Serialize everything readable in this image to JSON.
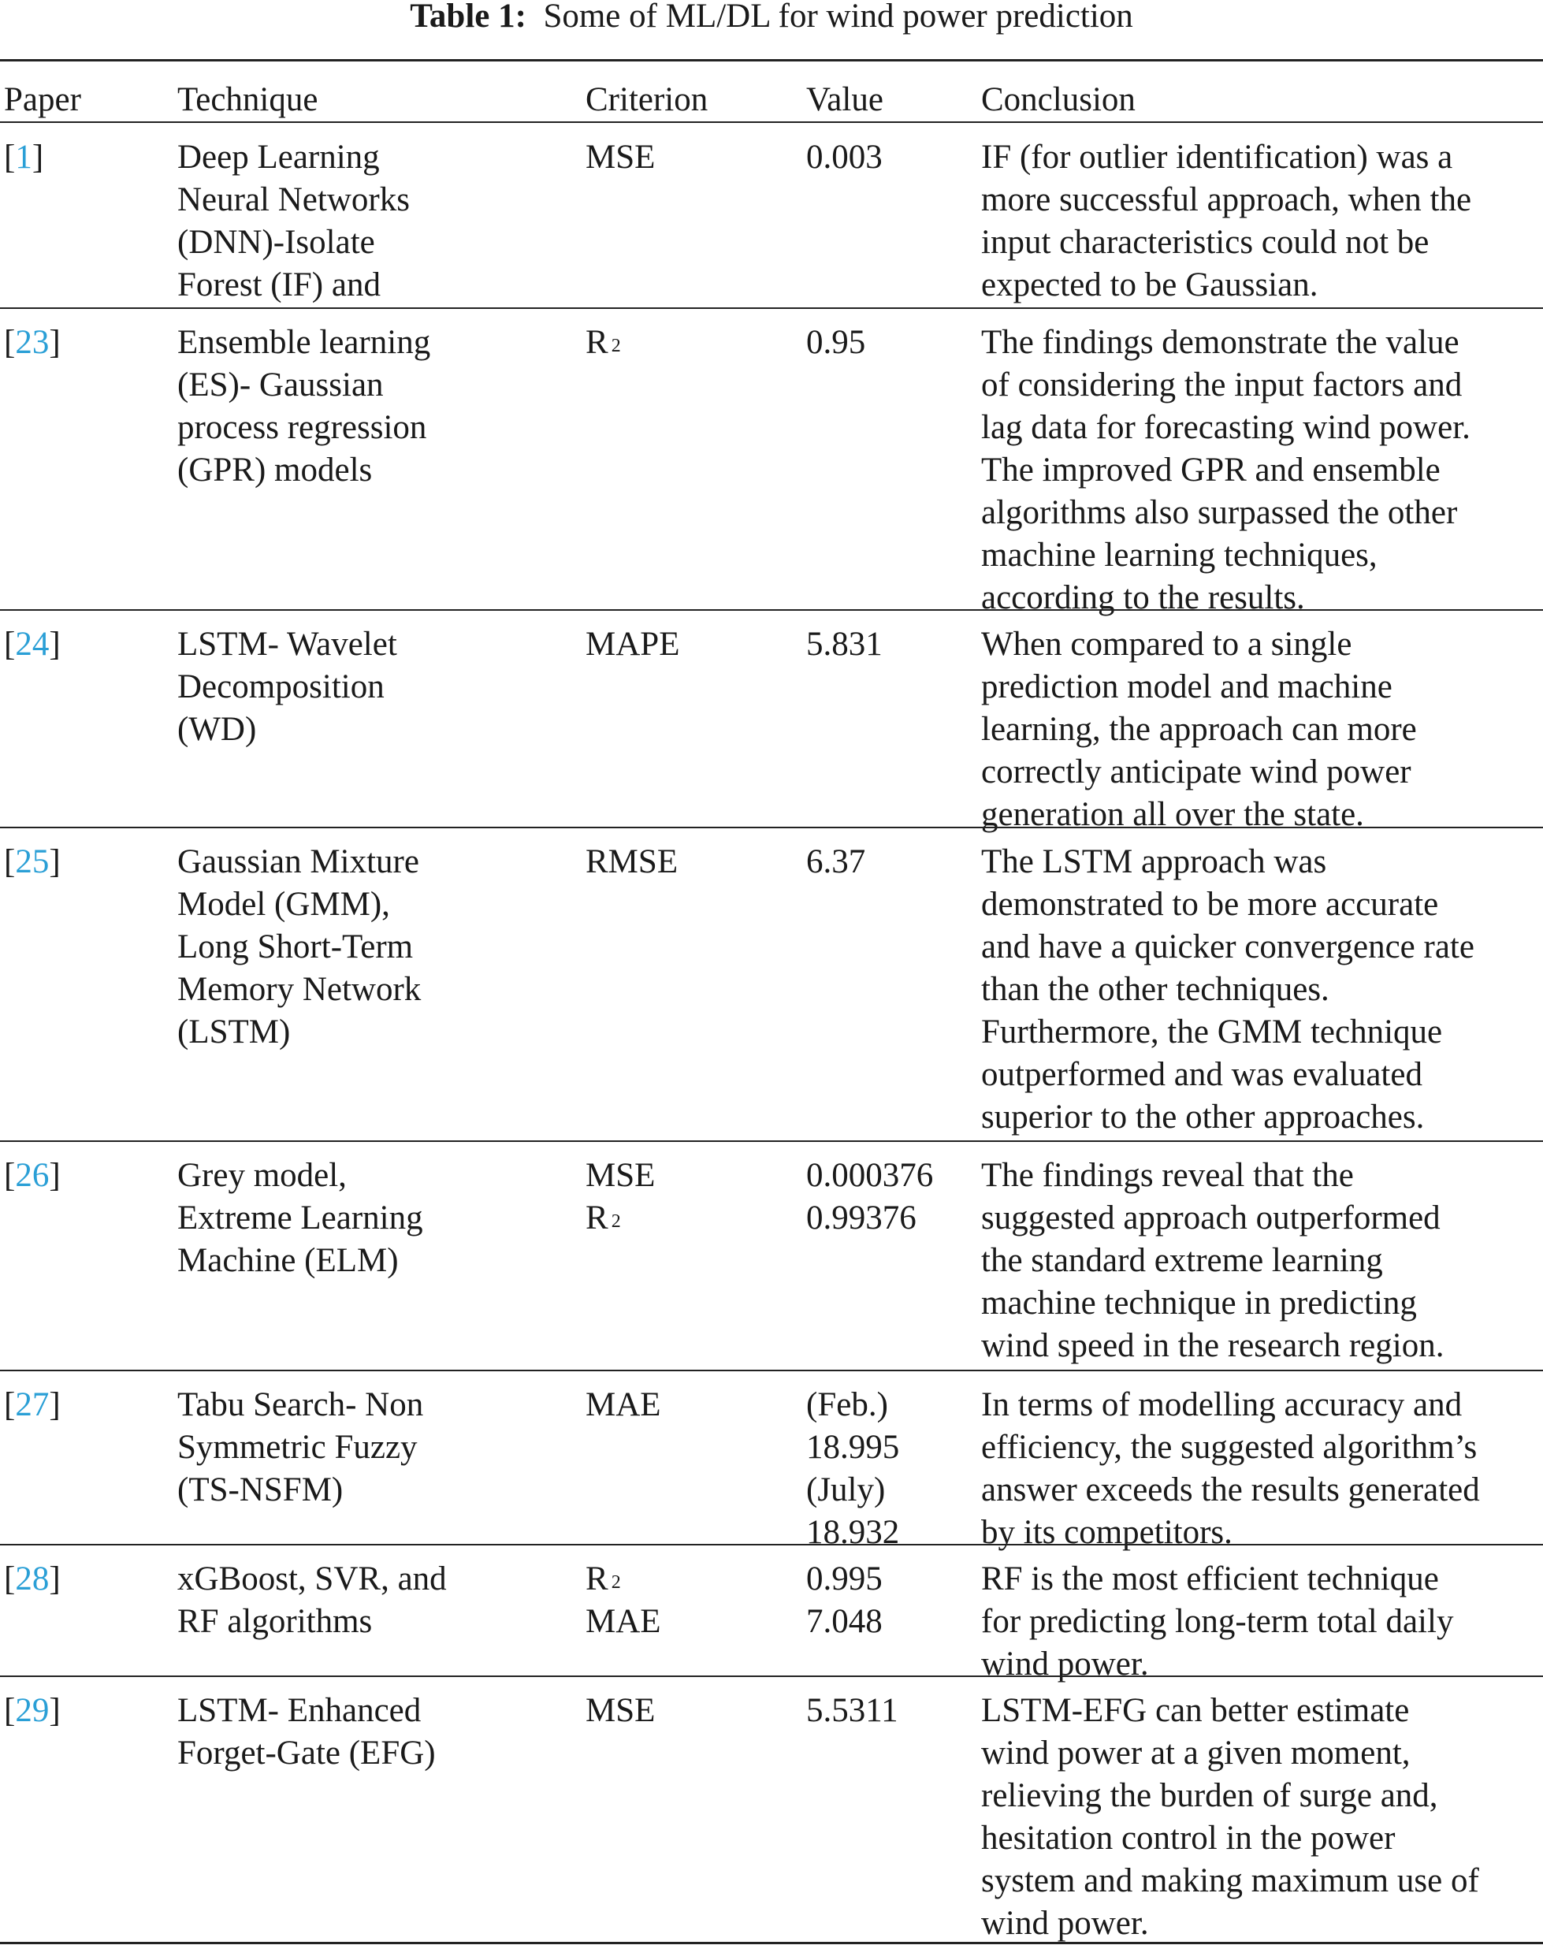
{
  "title": {
    "label": "Table 1:",
    "text": "Some of ML/DL for wind power prediction"
  },
  "colors": {
    "reference_link": "#2a9fd6",
    "text": "#1a1a1a"
  },
  "columns": [
    "Paper",
    "Technique",
    "Criterion",
    "Value",
    "Conclusion"
  ],
  "rows": [
    {
      "paper": "1",
      "technique": [
        "Deep Learning",
        "Neural Networks",
        "(DNN)-Isolate",
        "Forest (IF) and"
      ],
      "criterion": [
        "MSE"
      ],
      "value": [
        "0.003"
      ],
      "conclusion": [
        "IF (for outlier identification) was a",
        "more successful approach, when the",
        "input characteristics could not be",
        "expected to be Gaussian."
      ]
    },
    {
      "paper": "23",
      "technique": [
        "Ensemble learning",
        "(ES)- Gaussian",
        "process regression",
        "(GPR) models"
      ],
      "criterion": [
        "R^2"
      ],
      "value": [
        "0.95"
      ],
      "conclusion": [
        "The findings demonstrate the value",
        "of considering the input factors and",
        "lag data for forecasting wind power.",
        "The improved GPR and ensemble",
        "algorithms also surpassed the other",
        "machine learning techniques,",
        "according to the results."
      ]
    },
    {
      "paper": "24",
      "technique": [
        "LSTM- Wavelet",
        "Decomposition",
        "(WD)"
      ],
      "criterion": [
        "MAPE"
      ],
      "value": [
        "5.831"
      ],
      "conclusion": [
        "When compared to a single",
        "prediction model and machine",
        "learning, the approach can more",
        "correctly anticipate wind power",
        "generation all over the state."
      ]
    },
    {
      "paper": "25",
      "technique": [
        "Gaussian Mixture",
        "Model (GMM),",
        "Long Short-Term",
        "Memory Network",
        "(LSTM)"
      ],
      "criterion": [
        "RMSE"
      ],
      "value": [
        "6.37"
      ],
      "conclusion": [
        "The LSTM approach was",
        "demonstrated to be more accurate",
        "and have a quicker convergence rate",
        "than the other techniques.",
        "Furthermore, the GMM technique",
        "outperformed and was evaluated",
        "superior to the other approaches."
      ]
    },
    {
      "paper": "26",
      "technique": [
        "Grey model,",
        "Extreme Learning",
        "Machine (ELM)"
      ],
      "criterion": [
        "MSE",
        "R^2"
      ],
      "value": [
        "0.000376",
        "0.99376"
      ],
      "conclusion": [
        "The findings reveal that the",
        "suggested approach outperformed",
        "the standard extreme learning",
        "machine technique in predicting",
        "wind speed in the research region."
      ]
    },
    {
      "paper": "27",
      "technique": [
        "Tabu Search- Non",
        "Symmetric Fuzzy",
        "(TS-NSFM)"
      ],
      "criterion": [
        "MAE"
      ],
      "value": [
        "(Feb.)",
        "18.995",
        "(July)",
        "18.932"
      ],
      "conclusion": [
        "In terms of modelling accuracy and",
        "efficiency, the suggested algorithm’s",
        "answer exceeds the results generated",
        "by its competitors."
      ]
    },
    {
      "paper": "28",
      "technique": [
        "xGBoost, SVR, and",
        "RF algorithms"
      ],
      "criterion": [
        "R^2",
        "MAE"
      ],
      "value": [
        "0.995",
        "7.048"
      ],
      "conclusion": [
        "RF is the most efficient technique",
        "for predicting long-term total daily",
        "wind power."
      ]
    },
    {
      "paper": "29",
      "technique": [
        "LSTM- Enhanced",
        "Forget-Gate (EFG)"
      ],
      "criterion": [
        "MSE"
      ],
      "value": [
        "5.5311"
      ],
      "conclusion": [
        "LSTM-EFG can better estimate",
        "wind power at a given moment,",
        "relieving the burden of surge and,",
        "hesitation control in the power",
        "system and making maximum use of",
        "wind power."
      ]
    }
  ]
}
